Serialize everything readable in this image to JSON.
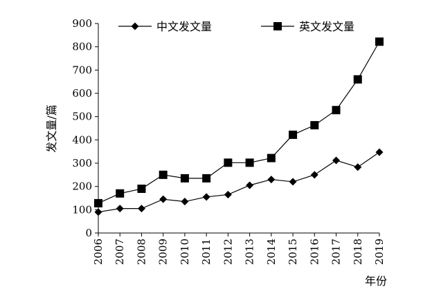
{
  "chart_data": {
    "type": "line",
    "xlabel": "年份",
    "ylabel": "发文量/篇",
    "x": [
      "2006",
      "2007",
      "2008",
      "2009",
      "2010",
      "2011",
      "2012",
      "2013",
      "2014",
      "2015",
      "2016",
      "2017",
      "2018",
      "2019"
    ],
    "ylim": [
      0,
      900
    ],
    "yticks": [
      0,
      100,
      200,
      300,
      400,
      500,
      600,
      700,
      800,
      900
    ],
    "legend_position": "top",
    "grid": false,
    "series": [
      {
        "name": "中文发文量",
        "marker": "diamond",
        "color": "#000000",
        "values": [
          90,
          105,
          105,
          145,
          135,
          155,
          165,
          205,
          230,
          220,
          250,
          312,
          283,
          347
        ]
      },
      {
        "name": "英文发文量",
        "marker": "square",
        "color": "#000000",
        "values": [
          128,
          170,
          190,
          250,
          235,
          235,
          302,
          302,
          322,
          422,
          463,
          528,
          660,
          822
        ]
      }
    ]
  }
}
